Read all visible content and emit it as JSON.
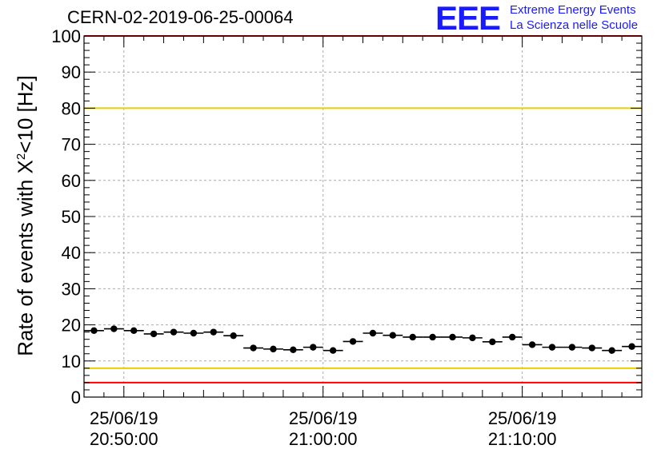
{
  "header": {
    "run_title": "CERN-02-2019-06-25-00064",
    "logo_text": "EEE",
    "logo_line1": "Extreme Energy Events",
    "logo_line2": "La Scienza nelle Scuole"
  },
  "axis": {
    "ylabel_main": "Rate of events with X",
    "ylabel_sup": "2",
    "ylabel_tail": "<10 [Hz]"
  },
  "colors": {
    "limit_red": "#ff0000",
    "limit_yellow": "#e8d000",
    "points": "#000000",
    "logo": "#1a1aff",
    "grid": "#aaaaaa"
  },
  "chart_data": {
    "type": "scatter",
    "x_unit": "minutes after 2019-06-25 20:48",
    "x_range": [
      0,
      28
    ],
    "ylim": [
      0,
      100
    ],
    "yticks": [
      0,
      10,
      20,
      30,
      40,
      50,
      60,
      70,
      80,
      90,
      100
    ],
    "xticks": [
      {
        "x": 2,
        "date": "25/06/19",
        "time": "20:50:00"
      },
      {
        "x": 12,
        "date": "25/06/19",
        "time": "21:00:00"
      },
      {
        "x": 22,
        "date": "25/06/19",
        "time": "21:10:00"
      }
    ],
    "grid": true,
    "bin_width": 1,
    "x": [
      0.5,
      1.5,
      2.5,
      3.5,
      4.5,
      5.5,
      6.5,
      7.5,
      8.5,
      9.5,
      10.5,
      11.5,
      12.5,
      13.5,
      14.5,
      15.5,
      16.5,
      17.5,
      18.5,
      19.5,
      20.5,
      21.5,
      22.5,
      23.5,
      24.5,
      25.5,
      26.5,
      27.5
    ],
    "y": [
      18.4,
      18.9,
      18.4,
      17.5,
      18.0,
      17.7,
      18.0,
      17.0,
      13.6,
      13.3,
      13.1,
      13.8,
      12.9,
      15.4,
      17.7,
      17.1,
      16.6,
      16.6,
      16.6,
      16.4,
      15.3,
      16.6,
      14.5,
      13.8,
      13.8,
      13.6,
      12.9,
      14.0
    ],
    "reference_lines": [
      {
        "y": 100,
        "color": "red"
      },
      {
        "y": 80,
        "color": "yellow"
      },
      {
        "y": 8,
        "color": "yellow"
      },
      {
        "y": 4,
        "color": "red"
      }
    ]
  }
}
